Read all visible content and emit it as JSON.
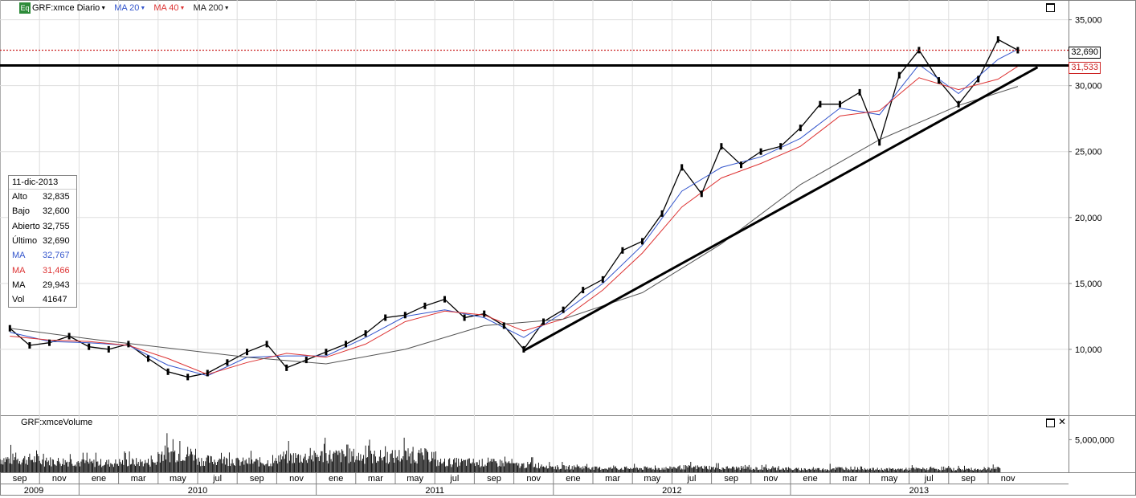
{
  "toolbar": {
    "symbol": "GRF:xmce",
    "period": "Diario",
    "badge": "Eq",
    "ma20": "MA 20",
    "ma40": "MA 40",
    "ma200": "MA 200"
  },
  "colors": {
    "ma20": "#3355cc",
    "ma40": "#dd3333",
    "ma200": "#555555",
    "last_price_line": "#cc2222"
  },
  "info_box": {
    "date": "11-dic-2013",
    "rows": [
      {
        "label": "Alto",
        "value": "32,835"
      },
      {
        "label": "Bajo",
        "value": "32,600"
      },
      {
        "label": "Abierto",
        "value": "32,755"
      },
      {
        "label": "Último",
        "value": "32,690"
      },
      {
        "label": "MA",
        "value": "32,767"
      },
      {
        "label": "MA",
        "value": "31,466"
      },
      {
        "label": "MA",
        "value": "29,943"
      },
      {
        "label": "Vol",
        "value": "41647"
      }
    ]
  },
  "price_tags": {
    "last": "32,690",
    "level": "31,533"
  },
  "volume_panel": {
    "title": "GRF:xmceVolume",
    "tick_label": "5,000,000"
  },
  "chart_data": {
    "type": "line",
    "title": "GRF:xmce Diario",
    "y_axis": {
      "ticks": [
        10000,
        15000,
        20000,
        25000,
        30000,
        35000
      ],
      "tick_labels": [
        "10,000",
        "15,000",
        "20,000",
        "25,000",
        "30,000",
        "35,000"
      ],
      "range": [
        5000,
        36500
      ],
      "side": "right"
    },
    "x_axis": {
      "month_labels": [
        "sep",
        "nov",
        "ene",
        "mar",
        "may",
        "jul",
        "sep",
        "nov",
        "ene",
        "mar",
        "may",
        "jul",
        "sep",
        "nov",
        "ene",
        "mar",
        "may",
        "jul",
        "sep",
        "nov",
        "ene",
        "mar",
        "may",
        "jul",
        "sep",
        "nov"
      ],
      "year_labels": [
        "2009",
        "2010",
        "2011",
        "2012",
        "2013"
      ],
      "start": "2009-09",
      "end": "2013-12"
    },
    "grid": true,
    "series": [
      {
        "name": "GRF:xmce",
        "points": [
          [
            "2009-09",
            11600
          ],
          [
            "2009-10",
            10300
          ],
          [
            "2009-11",
            10500
          ],
          [
            "2009-12",
            11000
          ],
          [
            "2010-01",
            10200
          ],
          [
            "2010-02",
            10000
          ],
          [
            "2010-03",
            10400
          ],
          [
            "2010-04",
            9300
          ],
          [
            "2010-05",
            8300
          ],
          [
            "2010-06",
            7900
          ],
          [
            "2010-07",
            8200
          ],
          [
            "2010-08",
            9000
          ],
          [
            "2010-09",
            9800
          ],
          [
            "2010-10",
            10400
          ],
          [
            "2010-11",
            8600
          ],
          [
            "2010-12",
            9200
          ],
          [
            "2011-01",
            9800
          ],
          [
            "2011-02",
            10400
          ],
          [
            "2011-03",
            11200
          ],
          [
            "2011-04",
            12400
          ],
          [
            "2011-05",
            12600
          ],
          [
            "2011-06",
            13300
          ],
          [
            "2011-07",
            13800
          ],
          [
            "2011-08",
            12400
          ],
          [
            "2011-09",
            12700
          ],
          [
            "2011-10",
            11800
          ],
          [
            "2011-11",
            10000
          ],
          [
            "2011-12",
            12100
          ],
          [
            "2012-01",
            13000
          ],
          [
            "2012-02",
            14500
          ],
          [
            "2012-03",
            15300
          ],
          [
            "2012-04",
            17500
          ],
          [
            "2012-05",
            18200
          ],
          [
            "2012-06",
            20300
          ],
          [
            "2012-07",
            23800
          ],
          [
            "2012-08",
            21800
          ],
          [
            "2012-09",
            25400
          ],
          [
            "2012-10",
            24000
          ],
          [
            "2012-11",
            25000
          ],
          [
            "2012-12",
            25400
          ],
          [
            "2013-01",
            26800
          ],
          [
            "2013-02",
            28600
          ],
          [
            "2013-03",
            28600
          ],
          [
            "2013-04",
            29500
          ],
          [
            "2013-05",
            25700
          ],
          [
            "2013-06",
            30800
          ],
          [
            "2013-07",
            32700
          ],
          [
            "2013-08",
            30400
          ],
          [
            "2013-09",
            28600
          ],
          [
            "2013-10",
            30500
          ],
          [
            "2013-11",
            33500
          ],
          [
            "2013-12",
            32690
          ]
        ]
      },
      {
        "name": "MA 20",
        "points": [
          [
            "2009-09",
            11300
          ],
          [
            "2009-11",
            10600
          ],
          [
            "2010-01",
            10500
          ],
          [
            "2010-03",
            10300
          ],
          [
            "2010-05",
            8800
          ],
          [
            "2010-07",
            8000
          ],
          [
            "2010-09",
            9400
          ],
          [
            "2010-11",
            9500
          ],
          [
            "2011-01",
            9500
          ],
          [
            "2011-03",
            10900
          ],
          [
            "2011-05",
            12500
          ],
          [
            "2011-07",
            13000
          ],
          [
            "2011-09",
            12400
          ],
          [
            "2011-11",
            10900
          ],
          [
            "2012-01",
            12800
          ],
          [
            "2012-03",
            15000
          ],
          [
            "2012-05",
            17900
          ],
          [
            "2012-07",
            22000
          ],
          [
            "2012-09",
            23800
          ],
          [
            "2012-11",
            24600
          ],
          [
            "2013-01",
            26000
          ],
          [
            "2013-03",
            28300
          ],
          [
            "2013-05",
            27800
          ],
          [
            "2013-07",
            31600
          ],
          [
            "2013-09",
            29400
          ],
          [
            "2013-11",
            32000
          ],
          [
            "2013-12",
            32767
          ]
        ]
      },
      {
        "name": "MA 40",
        "points": [
          [
            "2009-09",
            11000
          ],
          [
            "2009-11",
            10700
          ],
          [
            "2010-01",
            10600
          ],
          [
            "2010-03",
            10300
          ],
          [
            "2010-05",
            9300
          ],
          [
            "2010-07",
            8100
          ],
          [
            "2010-09",
            9000
          ],
          [
            "2010-11",
            9700
          ],
          [
            "2011-01",
            9400
          ],
          [
            "2011-03",
            10400
          ],
          [
            "2011-05",
            12100
          ],
          [
            "2011-07",
            12900
          ],
          [
            "2011-09",
            12600
          ],
          [
            "2011-11",
            11400
          ],
          [
            "2012-01",
            12300
          ],
          [
            "2012-03",
            14500
          ],
          [
            "2012-05",
            17300
          ],
          [
            "2012-07",
            20800
          ],
          [
            "2012-09",
            23000
          ],
          [
            "2012-11",
            24100
          ],
          [
            "2013-01",
            25400
          ],
          [
            "2013-03",
            27700
          ],
          [
            "2013-05",
            28100
          ],
          [
            "2013-07",
            30600
          ],
          [
            "2013-09",
            29700
          ],
          [
            "2013-11",
            30500
          ],
          [
            "2013-12",
            31466
          ]
        ]
      },
      {
        "name": "MA 200",
        "points": [
          [
            "2009-09",
            11600
          ],
          [
            "2010-01",
            10800
          ],
          [
            "2010-05",
            10100
          ],
          [
            "2010-09",
            9400
          ],
          [
            "2011-01",
            8900
          ],
          [
            "2011-05",
            10000
          ],
          [
            "2011-09",
            11800
          ],
          [
            "2012-01",
            12300
          ],
          [
            "2012-05",
            14300
          ],
          [
            "2012-09",
            18000
          ],
          [
            "2013-01",
            22500
          ],
          [
            "2013-05",
            25900
          ],
          [
            "2013-09",
            28500
          ],
          [
            "2013-12",
            29943
          ]
        ]
      }
    ],
    "horizontal_levels": [
      31533
    ],
    "last_price": 32690,
    "trendline": {
      "from": [
        "2011-11",
        9900
      ],
      "to": [
        "2014-01",
        31400
      ]
    },
    "volume": {
      "baseline_note": "",
      "monthly_max": [
        [
          "2009-09",
          4200000
        ],
        [
          "2009-11",
          3500000
        ],
        [
          "2010-01",
          3000000
        ],
        [
          "2010-03",
          3200000
        ],
        [
          "2010-05",
          6000000
        ],
        [
          "2010-07",
          3800000
        ],
        [
          "2010-09",
          3300000
        ],
        [
          "2010-11",
          4800000
        ],
        [
          "2011-01",
          5300000
        ],
        [
          "2011-03",
          5000000
        ],
        [
          "2011-05",
          5300000
        ],
        [
          "2011-07",
          3200000
        ],
        [
          "2011-09",
          3000000
        ],
        [
          "2011-11",
          2300000
        ],
        [
          "2012-01",
          1600000
        ],
        [
          "2012-03",
          1300000
        ],
        [
          "2012-05",
          1300000
        ],
        [
          "2012-07",
          1600000
        ],
        [
          "2012-09",
          1400000
        ],
        [
          "2012-11",
          1200000
        ],
        [
          "2013-01",
          1000000
        ],
        [
          "2013-03",
          1300000
        ],
        [
          "2013-05",
          1000000
        ],
        [
          "2013-07",
          1100000
        ],
        [
          "2013-09",
          1000000
        ],
        [
          "2013-11",
          1200000
        ]
      ]
    }
  }
}
